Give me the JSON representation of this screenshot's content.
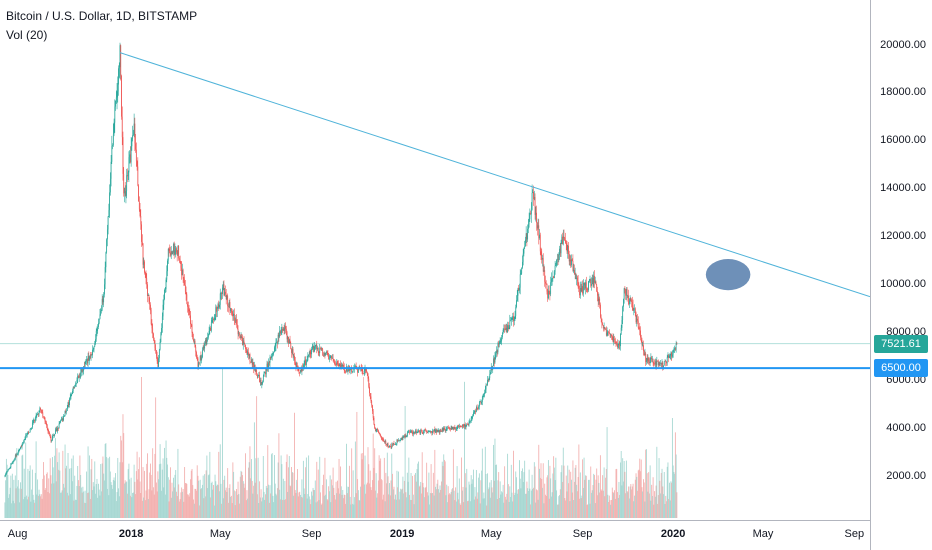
{
  "header": {
    "title": "Bitcoin / U.S. Dollar, 1D, BITSTAMP",
    "volume_label": "Vol (20)"
  },
  "colors": {
    "up": "#26a69a",
    "down": "#ef5350",
    "vol_up": "#a8d8d3",
    "vol_down": "#f3b2b1",
    "trendline": "#4fb3d9",
    "support_line": "#2196f3",
    "ellipse": "#6e90b8",
    "last_price_bg": "#26a69a",
    "support_tag_bg": "#2196f3"
  },
  "chart_data": {
    "type": "candlestick",
    "x_axis_labels": [
      "Aug",
      "2018",
      "May",
      "Sep",
      "2019",
      "May",
      "Sep",
      "2020",
      "May",
      "Sep"
    ],
    "y_axis_labels": [
      "20000.00",
      "18000.00",
      "16000.00",
      "14000.00",
      "12000.00",
      "10000.00",
      "8000.00",
      "6000.00",
      "4000.00",
      "2000.00"
    ],
    "ylim": [
      0,
      21000
    ],
    "grid": false,
    "price_path": [
      [
        "2017-07-15",
        2000
      ],
      [
        "2017-08-05",
        3200
      ],
      [
        "2017-08-20",
        4100
      ],
      [
        "2017-09-01",
        4800
      ],
      [
        "2017-09-15",
        3500
      ],
      [
        "2017-10-01",
        4400
      ],
      [
        "2017-10-20",
        6000
      ],
      [
        "2017-11-10",
        7200
      ],
      [
        "2017-11-25",
        9500
      ],
      [
        "2017-12-08",
        16500
      ],
      [
        "2017-12-17",
        19660
      ],
      [
        "2017-12-22",
        13500
      ],
      [
        "2018-01-05",
        16500
      ],
      [
        "2018-01-17",
        11000
      ],
      [
        "2018-02-06",
        6500
      ],
      [
        "2018-02-20",
        11400
      ],
      [
        "2018-03-05",
        11500
      ],
      [
        "2018-04-01",
        6600
      ],
      [
        "2018-05-05",
        9800
      ],
      [
        "2018-06-01",
        7500
      ],
      [
        "2018-06-25",
        5900
      ],
      [
        "2018-07-25",
        8300
      ],
      [
        "2018-08-15",
        6300
      ],
      [
        "2018-09-05",
        7400
      ],
      [
        "2018-10-15",
        6500
      ],
      [
        "2018-11-14",
        6400
      ],
      [
        "2018-11-25",
        4000
      ],
      [
        "2018-12-15",
        3200
      ],
      [
        "2019-01-10",
        3800
      ],
      [
        "2019-02-20",
        3900
      ],
      [
        "2019-03-30",
        4100
      ],
      [
        "2019-04-20",
        5300
      ],
      [
        "2019-05-15",
        7900
      ],
      [
        "2019-06-01",
        8600
      ],
      [
        "2019-06-26",
        13800
      ],
      [
        "2019-07-16",
        9400
      ],
      [
        "2019-08-06",
        12000
      ],
      [
        "2019-08-28",
        9700
      ],
      [
        "2019-09-18",
        10200
      ],
      [
        "2019-09-28",
        8200
      ],
      [
        "2019-10-21",
        7400
      ],
      [
        "2019-10-27",
        9800
      ],
      [
        "2019-11-10",
        8800
      ],
      [
        "2019-11-25",
        6900
      ],
      [
        "2019-12-18",
        6600
      ],
      [
        "2020-01-01",
        7200
      ],
      [
        "2020-01-06",
        7521.61
      ]
    ],
    "volume_max": 5000,
    "trendline": [
      [
        "2017-12-17",
        19660
      ],
      [
        "2020-10-10",
        9300
      ]
    ],
    "support_level": 6500,
    "last_price": 7521.61,
    "price_tags": [
      "7521.61",
      "6500.00"
    ],
    "highlight_ellipse": {
      "center_date": "2020-03-15",
      "center_price": 10400,
      "half_width_days": 30,
      "half_height_price": 650
    }
  }
}
